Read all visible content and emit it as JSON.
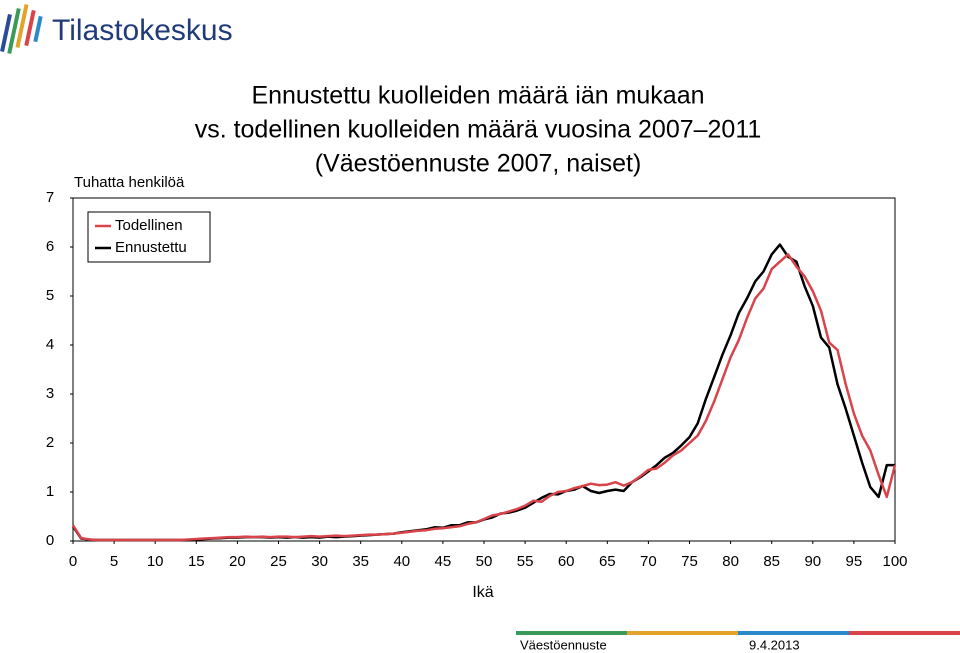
{
  "logo": "Tilastokeskus",
  "footer": {
    "source": "Väestöennuste",
    "date": "9.4.2013"
  },
  "chart_data": {
    "type": "line",
    "title_lines": [
      "Ennustettu kuolleiden määrä iän mukaan",
      "vs. todellinen kuolleiden määrä vuosina 2007–2011",
      "(Väestöennuste 2007, naiset)"
    ],
    "y_label": "Tuhatta henkilöä",
    "x_label": "Ikä",
    "x": [
      0,
      1,
      2,
      3,
      4,
      5,
      6,
      7,
      8,
      9,
      10,
      11,
      12,
      13,
      14,
      15,
      16,
      17,
      18,
      19,
      20,
      21,
      22,
      23,
      24,
      25,
      26,
      27,
      28,
      29,
      30,
      31,
      32,
      33,
      34,
      35,
      36,
      37,
      38,
      39,
      40,
      41,
      42,
      43,
      44,
      45,
      46,
      47,
      48,
      49,
      50,
      51,
      52,
      53,
      54,
      55,
      56,
      57,
      58,
      59,
      60,
      61,
      62,
      63,
      64,
      65,
      66,
      67,
      68,
      69,
      70,
      71,
      72,
      73,
      74,
      75,
      76,
      77,
      78,
      79,
      80,
      81,
      82,
      83,
      84,
      85,
      86,
      87,
      88,
      89,
      90,
      91,
      92,
      93,
      94,
      95,
      96,
      97,
      98,
      99,
      100
    ],
    "series": [
      {
        "name": "Todellinen",
        "color": "#d9444a",
        "values": [
          0.32,
          0.06,
          0.03,
          0.02,
          0.02,
          0.02,
          0.02,
          0.02,
          0.02,
          0.02,
          0.02,
          0.02,
          0.02,
          0.02,
          0.03,
          0.04,
          0.05,
          0.06,
          0.07,
          0.08,
          0.08,
          0.09,
          0.08,
          0.09,
          0.08,
          0.09,
          0.09,
          0.08,
          0.09,
          0.1,
          0.09,
          0.1,
          0.11,
          0.1,
          0.11,
          0.12,
          0.13,
          0.13,
          0.14,
          0.15,
          0.17,
          0.19,
          0.21,
          0.22,
          0.25,
          0.26,
          0.28,
          0.3,
          0.35,
          0.38,
          0.45,
          0.52,
          0.55,
          0.6,
          0.65,
          0.72,
          0.82,
          0.8,
          0.92,
          1.0,
          1.02,
          1.08,
          1.12,
          1.17,
          1.14,
          1.15,
          1.2,
          1.13,
          1.2,
          1.32,
          1.45,
          1.48,
          1.6,
          1.75,
          1.85,
          2.0,
          2.15,
          2.45,
          2.85,
          3.3,
          3.75,
          4.1,
          4.55,
          4.95,
          5.15,
          5.55,
          5.7,
          5.85,
          5.6,
          5.4,
          5.1,
          4.7,
          4.05,
          3.9,
          3.2,
          2.6,
          2.15,
          1.85,
          1.35,
          0.9,
          1.55
        ]
      },
      {
        "name": "Ennustettu",
        "color": "#000000",
        "values": [
          0.3,
          0.05,
          0.03,
          0.02,
          0.02,
          0.02,
          0.02,
          0.02,
          0.02,
          0.02,
          0.02,
          0.02,
          0.02,
          0.02,
          0.02,
          0.03,
          0.04,
          0.05,
          0.06,
          0.07,
          0.07,
          0.08,
          0.08,
          0.08,
          0.07,
          0.08,
          0.07,
          0.08,
          0.07,
          0.08,
          0.07,
          0.09,
          0.08,
          0.09,
          0.1,
          0.11,
          0.12,
          0.13,
          0.14,
          0.15,
          0.18,
          0.2,
          0.22,
          0.24,
          0.28,
          0.27,
          0.32,
          0.32,
          0.38,
          0.38,
          0.44,
          0.48,
          0.56,
          0.58,
          0.62,
          0.68,
          0.78,
          0.88,
          0.96,
          0.95,
          1.02,
          1.05,
          1.12,
          1.02,
          0.98,
          1.02,
          1.05,
          1.02,
          1.2,
          1.3,
          1.42,
          1.55,
          1.7,
          1.8,
          1.95,
          2.12,
          2.4,
          2.9,
          3.35,
          3.8,
          4.2,
          4.65,
          4.95,
          5.3,
          5.5,
          5.85,
          6.05,
          5.8,
          5.7,
          5.2,
          4.8,
          4.15,
          3.95,
          3.2,
          2.7,
          2.15,
          1.6,
          1.1,
          0.9,
          1.55,
          1.55
        ]
      }
    ],
    "xlim": [
      0,
      100
    ],
    "xticks": [
      0,
      5,
      10,
      15,
      20,
      25,
      30,
      35,
      40,
      45,
      50,
      55,
      60,
      65,
      70,
      75,
      80,
      85,
      90,
      95,
      100
    ],
    "ylim": [
      0,
      7
    ],
    "yticks": [
      0,
      1,
      2,
      3,
      4,
      5,
      6,
      7
    ],
    "grid": false
  }
}
